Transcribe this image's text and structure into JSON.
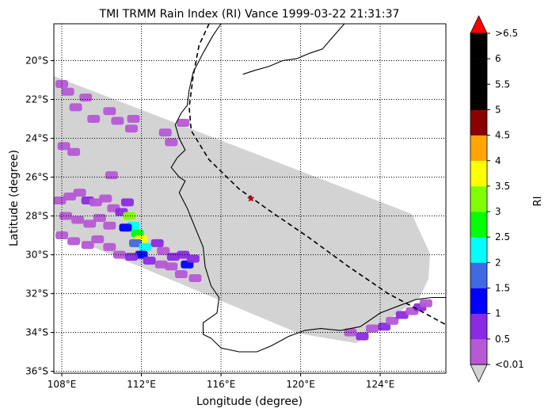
{
  "chart_data": {
    "type": "heatmap",
    "title": "TMI TRMM Rain Index (RI) Vance 1999-03-22 21:31:37",
    "xlabel": "Longitude (degree)",
    "ylabel": "Latitude (degree)",
    "xlim": [
      107.6,
      127.3
    ],
    "ylim": [
      -36.1,
      -18.1
    ],
    "x_ticks": [
      108,
      112,
      116,
      120,
      124
    ],
    "x_tick_labels": [
      "108°E",
      "112°E",
      "116°E",
      "120°E",
      "124°E"
    ],
    "y_ticks": [
      -20,
      -22,
      -24,
      -26,
      -28,
      -30,
      -32,
      -34,
      -36
    ],
    "y_tick_labels": [
      "20°S",
      "22°S",
      "24°S",
      "26°S",
      "28°S",
      "30°S",
      "32°S",
      "34°S",
      "36°S"
    ],
    "grid": true,
    "grid_style": "dotted",
    "colorbar": {
      "label": "RI",
      "tick_labels": [
        "<0.01",
        "0.5",
        "1",
        "1.5",
        "2",
        "2.5",
        "3",
        "3.5",
        "4",
        "4.5",
        "5",
        "5.5",
        "6",
        ">6.5"
      ],
      "colors": [
        "#b659d6",
        "#8a2be2",
        "#0000ff",
        "#4169e1",
        "#00ffff",
        "#00ff00",
        "#7fff00",
        "#ffff00",
        "#ffa500",
        "#8b0000",
        "#000000",
        "#000000",
        "#000000"
      ],
      "under_color": "#d3d3d3",
      "over_color": "#ff0000"
    },
    "swath_color": "#d3d3d3",
    "storm_center": {
      "lon": 117.5,
      "lat": -27.1
    },
    "track": [
      [
        115.4,
        -18.1
      ],
      [
        114.9,
        -19.2
      ],
      [
        114.6,
        -20.8
      ],
      [
        114.4,
        -22.4
      ],
      [
        114.5,
        -23.6
      ],
      [
        115.4,
        -25.1
      ],
      [
        116.9,
        -26.6
      ],
      [
        118.4,
        -27.7
      ],
      [
        120.4,
        -29.1
      ],
      [
        122.4,
        -30.6
      ],
      [
        124.4,
        -32.0
      ],
      [
        126.4,
        -33.1
      ],
      [
        127.3,
        -33.6
      ]
    ],
    "coastline": [
      [
        [
          116.0,
          -18.1
        ],
        [
          115.6,
          -18.7
        ],
        [
          115.1,
          -19.6
        ],
        [
          114.6,
          -20.6
        ],
        [
          114.4,
          -21.5
        ],
        [
          114.3,
          -22.3
        ],
        [
          114.0,
          -22.7
        ],
        [
          113.7,
          -23.3
        ],
        [
          113.9,
          -24.0
        ],
        [
          114.2,
          -24.6
        ],
        [
          113.8,
          -25.0
        ],
        [
          113.5,
          -25.5
        ],
        [
          113.9,
          -26.0
        ],
        [
          114.2,
          -26.2
        ],
        [
          113.9,
          -26.8
        ],
        [
          114.3,
          -27.6
        ],
        [
          114.7,
          -28.6
        ],
        [
          115.1,
          -29.6
        ],
        [
          115.2,
          -30.6
        ],
        [
          115.5,
          -31.6
        ],
        [
          115.9,
          -32.2
        ],
        [
          115.8,
          -33.0
        ],
        [
          115.1,
          -33.5
        ],
        [
          115.1,
          -34.1
        ],
        [
          115.5,
          -34.3
        ],
        [
          116.0,
          -34.8
        ],
        [
          116.9,
          -35.0
        ],
        [
          117.8,
          -35.0
        ],
        [
          118.5,
          -34.7
        ],
        [
          119.4,
          -34.2
        ],
        [
          120.2,
          -33.9
        ],
        [
          121.0,
          -33.8
        ],
        [
          122.0,
          -33.9
        ],
        [
          123.0,
          -33.7
        ],
        [
          124.0,
          -33.0
        ],
        [
          125.0,
          -32.6
        ],
        [
          125.8,
          -32.3
        ],
        [
          126.6,
          -32.2
        ],
        [
          127.3,
          -32.2
        ]
      ],
      [
        [
          117.1,
          -20.7
        ],
        [
          117.7,
          -20.5
        ],
        [
          118.4,
          -20.3
        ],
        [
          119.1,
          -20.0
        ],
        [
          119.8,
          -19.9
        ],
        [
          120.5,
          -19.6
        ],
        [
          121.1,
          -19.4
        ],
        [
          121.6,
          -18.8
        ],
        [
          122.2,
          -18.1
        ]
      ]
    ],
    "cells": [
      {
        "lon": 108.0,
        "lat": -21.2,
        "ri": 0.01
      },
      {
        "lon": 108.3,
        "lat": -21.6,
        "ri": 0.01
      },
      {
        "lon": 108.7,
        "lat": -22.4,
        "ri": 0.01
      },
      {
        "lon": 109.2,
        "lat": -21.9,
        "ri": 0.01
      },
      {
        "lon": 109.6,
        "lat": -23.0,
        "ri": 0.01
      },
      {
        "lon": 110.4,
        "lat": -22.6,
        "ri": 0.01
      },
      {
        "lon": 110.8,
        "lat": -23.1,
        "ri": 0.01
      },
      {
        "lon": 111.6,
        "lat": -23.0,
        "ri": 0.01
      },
      {
        "lon": 111.5,
        "lat": -23.5,
        "ri": 0.01
      },
      {
        "lon": 108.1,
        "lat": -24.4,
        "ri": 0.01
      },
      {
        "lon": 108.6,
        "lat": -24.7,
        "ri": 0.01
      },
      {
        "lon": 114.1,
        "lat": -23.2,
        "ri": 0.01
      },
      {
        "lon": 113.2,
        "lat": -23.7,
        "ri": 0.01
      },
      {
        "lon": 113.5,
        "lat": -24.2,
        "ri": 0.01
      },
      {
        "lon": 110.5,
        "lat": -25.9,
        "ri": 0.01
      },
      {
        "lon": 107.9,
        "lat": -27.2,
        "ri": 0.01
      },
      {
        "lon": 108.4,
        "lat": -27.0,
        "ri": 0.01
      },
      {
        "lon": 108.9,
        "lat": -26.8,
        "ri": 0.01
      },
      {
        "lon": 109.3,
        "lat": -27.2,
        "ri": 0.5
      },
      {
        "lon": 109.7,
        "lat": -27.3,
        "ri": 0.01
      },
      {
        "lon": 110.2,
        "lat": -27.1,
        "ri": 0.01
      },
      {
        "lon": 110.6,
        "lat": -27.6,
        "ri": 0.01
      },
      {
        "lon": 108.2,
        "lat": -28.0,
        "ri": 0.01
      },
      {
        "lon": 108.8,
        "lat": -28.2,
        "ri": 0.01
      },
      {
        "lon": 109.4,
        "lat": -28.4,
        "ri": 0.01
      },
      {
        "lon": 109.9,
        "lat": -28.1,
        "ri": 0.01
      },
      {
        "lon": 110.4,
        "lat": -28.5,
        "ri": 0.01
      },
      {
        "lon": 108.0,
        "lat": -29.0,
        "ri": 0.01
      },
      {
        "lon": 108.6,
        "lat": -29.3,
        "ri": 0.01
      },
      {
        "lon": 109.3,
        "lat": -29.5,
        "ri": 0.01
      },
      {
        "lon": 109.8,
        "lat": -29.2,
        "ri": 0.01
      },
      {
        "lon": 110.4,
        "lat": -29.6,
        "ri": 0.01
      },
      {
        "lon": 110.9,
        "lat": -30.0,
        "ri": 0.01
      },
      {
        "lon": 111.3,
        "lat": -27.3,
        "ri": 0.5
      },
      {
        "lon": 111.0,
        "lat": -27.8,
        "ri": 0.5
      },
      {
        "lon": 111.4,
        "lat": -28.0,
        "ri": 3.0
      },
      {
        "lon": 111.6,
        "lat": -28.5,
        "ri": 2.0
      },
      {
        "lon": 111.2,
        "lat": -28.6,
        "ri": 1.0
      },
      {
        "lon": 111.8,
        "lat": -28.9,
        "ri": 2.5
      },
      {
        "lon": 112.0,
        "lat": -29.2,
        "ri": 3.5
      },
      {
        "lon": 111.7,
        "lat": -29.4,
        "ri": 1.5
      },
      {
        "lon": 112.2,
        "lat": -29.6,
        "ri": 2.0
      },
      {
        "lon": 112.0,
        "lat": -30.0,
        "ri": 1.0
      },
      {
        "lon": 111.5,
        "lat": -30.1,
        "ri": 0.5
      },
      {
        "lon": 112.4,
        "lat": -30.3,
        "ri": 0.5
      },
      {
        "lon": 112.8,
        "lat": -29.4,
        "ri": 0.5
      },
      {
        "lon": 113.1,
        "lat": -29.8,
        "ri": 0.01
      },
      {
        "lon": 113.6,
        "lat": -30.1,
        "ri": 0.5
      },
      {
        "lon": 114.1,
        "lat": -30.0,
        "ri": 0.5
      },
      {
        "lon": 114.3,
        "lat": -30.5,
        "ri": 1.0
      },
      {
        "lon": 114.6,
        "lat": -30.2,
        "ri": 0.5
      },
      {
        "lon": 113.5,
        "lat": -30.6,
        "ri": 0.01
      },
      {
        "lon": 114.0,
        "lat": -31.0,
        "ri": 0.01
      },
      {
        "lon": 114.7,
        "lat": -31.2,
        "ri": 0.01
      },
      {
        "lon": 113.0,
        "lat": -30.5,
        "ri": 0.01
      },
      {
        "lon": 122.5,
        "lat": -34.0,
        "ri": 0.01
      },
      {
        "lon": 123.1,
        "lat": -34.2,
        "ri": 0.5
      },
      {
        "lon": 123.6,
        "lat": -33.8,
        "ri": 0.01
      },
      {
        "lon": 124.2,
        "lat": -33.7,
        "ri": 0.5
      },
      {
        "lon": 124.6,
        "lat": -33.4,
        "ri": 0.01
      },
      {
        "lon": 125.1,
        "lat": -33.1,
        "ri": 0.5
      },
      {
        "lon": 125.6,
        "lat": -32.9,
        "ri": 0.01
      },
      {
        "lon": 126.0,
        "lat": -32.7,
        "ri": 0.5
      },
      {
        "lon": 126.3,
        "lat": -32.5,
        "ri": 0.01
      }
    ]
  }
}
